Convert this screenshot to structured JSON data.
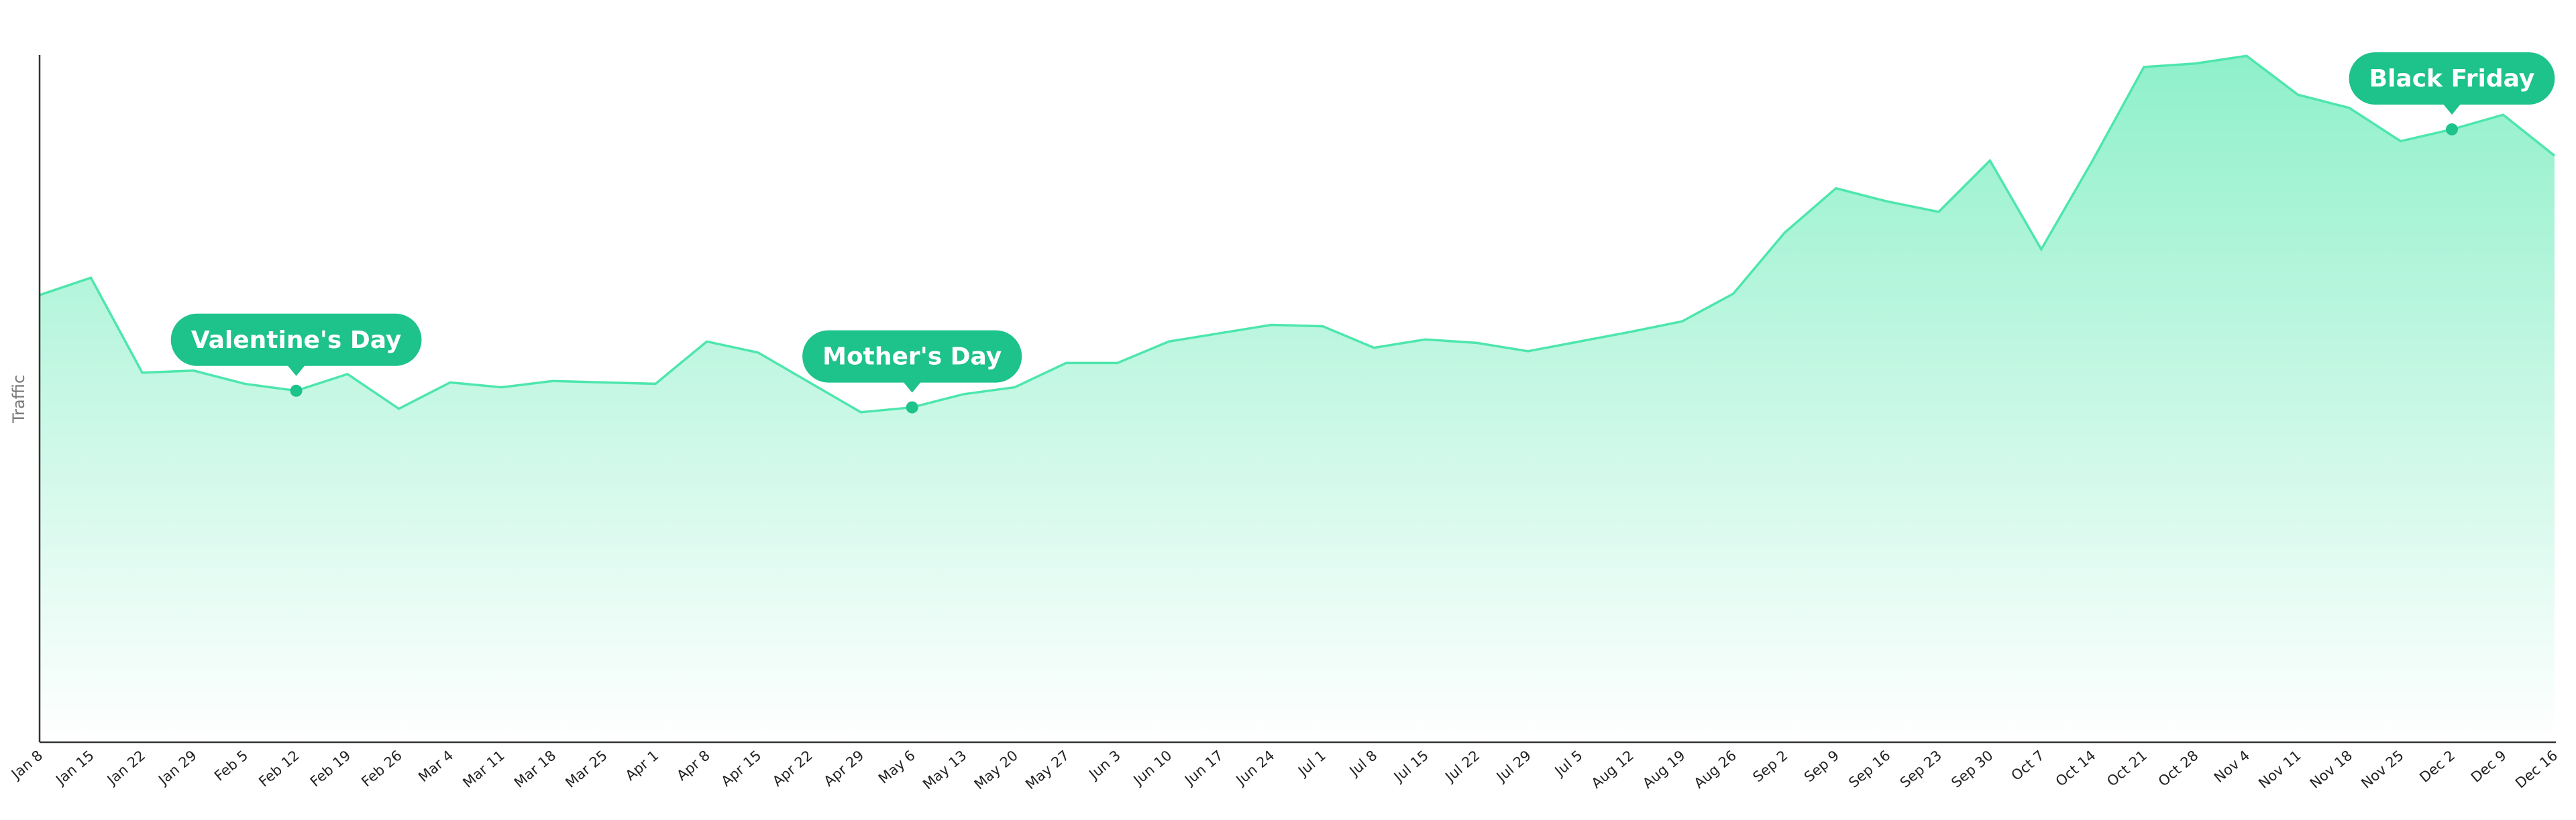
{
  "chart_data": {
    "type": "area",
    "y_label": "Traffic",
    "categories": [
      "Jan 8",
      "Jan 15",
      "Jan 22",
      "Jan 29",
      "Feb 5",
      "Feb 12",
      "Feb 19",
      "Feb 26",
      "Mar 4",
      "Mar 11",
      "Mar 18",
      "Mar 25",
      "Apr 1",
      "Apr 8",
      "Apr 15",
      "Apr 22",
      "Apr 29",
      "May 6",
      "May 13",
      "May 20",
      "May 27",
      "Jun 3",
      "Jun 10",
      "Jun 17",
      "Jun 24",
      "Jul 1",
      "Jul 8",
      "Jul 15",
      "Jul 22",
      "Jul 29",
      "Jul 5",
      "Aug 12",
      "Aug 19",
      "Aug 26",
      "Sep 2",
      "Sep 9",
      "Sep 16",
      "Sep 23",
      "Sep 30",
      "Oct 7",
      "Oct 14",
      "Oct 21",
      "Oct 28",
      "Nov 4",
      "Nov 11",
      "Nov 18",
      "Nov 25",
      "Dec 2",
      "Dec 9",
      "Dec 16"
    ],
    "values": [
      64.5,
      67,
      53.3,
      53.6,
      51.7,
      50.7,
      53.1,
      48.1,
      51.9,
      51.2,
      52.1,
      51.9,
      51.7,
      57.8,
      56.2,
      51.9,
      47.6,
      48.3,
      50.2,
      51.2,
      54.7,
      54.7,
      57.8,
      59,
      60.2,
      60,
      56.9,
      58.1,
      57.6,
      56.4,
      57.8,
      59.2,
      60.7,
      64.7,
      73.5,
      79.9,
      78,
      76.5,
      83.9,
      71.1,
      83.9,
      97.4,
      97.9,
      99,
      93.4,
      91.5,
      86.7,
      88.4,
      90.5,
      84.6
    ],
    "color": "#4de6ad",
    "annotation_color": "#1ec28b",
    "ylim": [
      0,
      100
    ],
    "annotations": [
      {
        "label": "Valentine's Day",
        "category": "Feb 12"
      },
      {
        "label": "Mother's Day",
        "category": "May 6"
      },
      {
        "label": "Black Friday",
        "category": "Dec 2"
      }
    ]
  }
}
